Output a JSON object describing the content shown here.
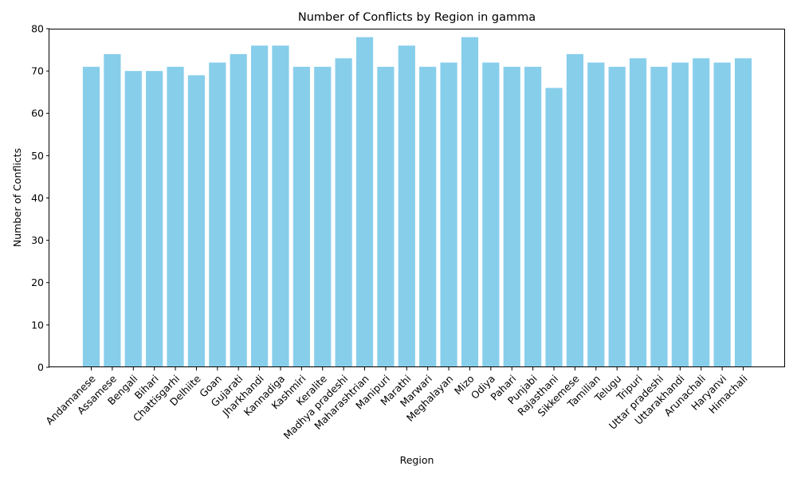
{
  "chart_data": {
    "type": "bar",
    "title": "Number of Conflicts by Region in gamma",
    "xlabel": "Region",
    "ylabel": "Number of Conflicts",
    "ylim": [
      0,
      80
    ],
    "yticks": [
      0,
      10,
      20,
      30,
      40,
      50,
      60,
      70,
      80
    ],
    "bar_color": "#87ceeb",
    "grid": false,
    "legend": "none",
    "categories": [
      "Andamanese",
      "Assamese",
      "Bengali",
      "Bihari",
      "Chattisgarhi",
      "Delhiite",
      "Goan",
      "Gujarati",
      "Jharkhandi",
      "Kannadiga",
      "Kashmiri",
      "Keralite",
      "Madhya pradeshi",
      "Maharashtrian",
      "Manipuri",
      "Marathi",
      "Marwari",
      "Meghalayan",
      "Mizo",
      "Odiya",
      "Pahari",
      "Punjabi",
      "Rajasthani",
      "Sikkemese",
      "Tamilian",
      "Telugu",
      "Tripuri",
      "Uttar pradeshi",
      "Uttarakhandi",
      "Arunachali",
      "Haryanvi",
      "Himachali"
    ],
    "values": [
      71,
      74,
      70,
      70,
      71,
      69,
      72,
      74,
      76,
      76,
      71,
      71,
      73,
      78,
      71,
      76,
      71,
      72,
      78,
      72,
      71,
      71,
      66,
      74,
      72,
      71,
      73,
      71,
      72,
      73,
      72,
      73
    ]
  }
}
